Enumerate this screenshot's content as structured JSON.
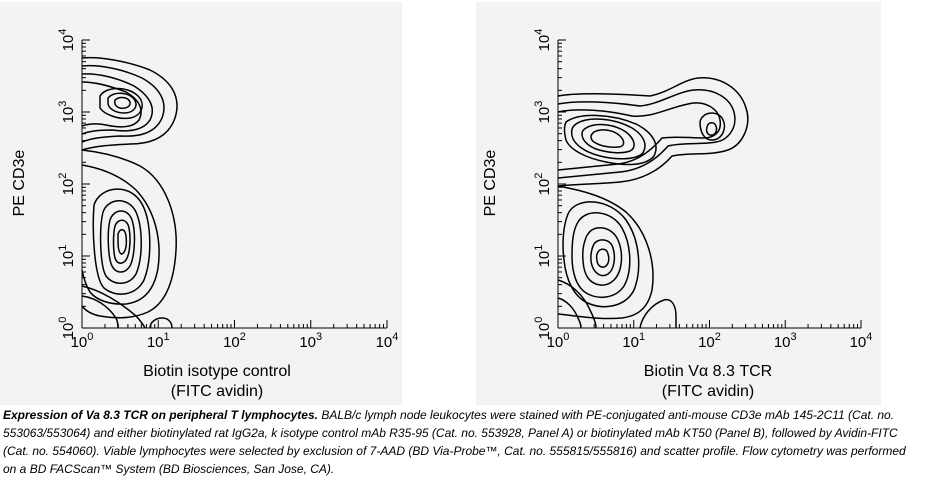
{
  "chart_data": [
    {
      "type": "contour",
      "panel": "A",
      "xlabel_line1": "Biotin isotype control",
      "xlabel_line2": "(FITC avidin)",
      "ylabel": "PE CD3e",
      "x_scale": "log",
      "y_scale": "log",
      "xlim": [
        1,
        10000
      ],
      "ylim": [
        1,
        10000
      ],
      "x_ticks": [
        1,
        10,
        100,
        1000,
        10000
      ],
      "y_ticks": [
        1,
        10,
        100,
        1000,
        10000
      ],
      "x_tick_labels": [
        {
          "base": "10",
          "exp": "0"
        },
        {
          "base": "10",
          "exp": "1"
        },
        {
          "base": "10",
          "exp": "2"
        },
        {
          "base": "10",
          "exp": "3"
        },
        {
          "base": "10",
          "exp": "4"
        }
      ],
      "y_tick_labels": [
        {
          "base": "10",
          "exp": "0"
        },
        {
          "base": "10",
          "exp": "1"
        },
        {
          "base": "10",
          "exp": "2"
        },
        {
          "base": "10",
          "exp": "3"
        },
        {
          "base": "10",
          "exp": "4"
        }
      ],
      "populations": [
        {
          "x_center": 5,
          "y_center": 700
        },
        {
          "x_center": 5,
          "y_center": 15
        }
      ]
    },
    {
      "type": "contour",
      "panel": "B",
      "xlabel_line1": "Biotin Vα 8.3 TCR",
      "xlabel_line2": "(FITC avidin)",
      "ylabel": "PE CD3e",
      "x_scale": "log",
      "y_scale": "log",
      "xlim": [
        1,
        10000
      ],
      "ylim": [
        1,
        10000
      ],
      "x_ticks": [
        1,
        10,
        100,
        1000,
        10000
      ],
      "y_ticks": [
        1,
        10,
        100,
        1000,
        10000
      ],
      "x_tick_labels": [
        {
          "base": "10",
          "exp": "0"
        },
        {
          "base": "10",
          "exp": "1"
        },
        {
          "base": "10",
          "exp": "2"
        },
        {
          "base": "10",
          "exp": "3"
        },
        {
          "base": "10",
          "exp": "4"
        }
      ],
      "y_tick_labels": [
        {
          "base": "10",
          "exp": "0"
        },
        {
          "base": "10",
          "exp": "1"
        },
        {
          "base": "10",
          "exp": "2"
        },
        {
          "base": "10",
          "exp": "3"
        },
        {
          "base": "10",
          "exp": "4"
        }
      ],
      "populations": [
        {
          "x_center": 5,
          "y_center": 400
        },
        {
          "x_center": 5,
          "y_center": 10
        },
        {
          "x_center": 100,
          "y_center": 500
        }
      ]
    }
  ],
  "caption": {
    "title": "Expression of Va 8.3 TCR on peripheral T lymphocytes.",
    "body": " BALB/c lymph node leukocytes were stained with PE-conjugated anti-mouse CD3e mAb 145-2C11 (Cat. no. 553063/553064) and either biotinylated rat IgG2a, k isotype control mAb R35-95 (Cat. no. 553928, Panel A) or biotinylated mAb KT50 (Panel B), followed by Avidin-FITC (Cat. no. 554060). Viable lymphocytes were selected by exclusion of 7-AAD (BD Via-Probe™, Cat. no. 555815/555816) and scatter profile. Flow cytometry was performed on a BD FACScan™ System (BD Biosciences, San Jose, CA)."
  }
}
